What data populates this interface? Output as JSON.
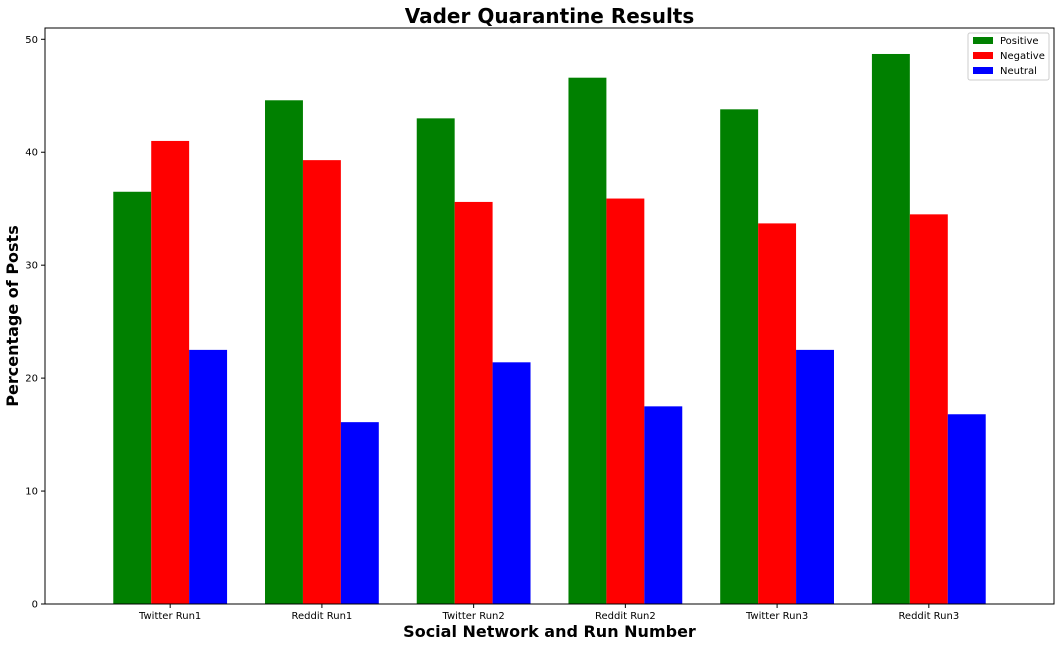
{
  "chart_data": {
    "type": "bar",
    "title": "Vader Quarantine Results",
    "xlabel": "Social Network and Run Number",
    "ylabel": "Percentage of Posts",
    "categories": [
      "Twitter Run1",
      "Reddit Run1",
      "Twitter Run2",
      "Reddit Run2",
      "Twitter Run3",
      "Reddit Run3"
    ],
    "ylim": [
      0,
      51
    ],
    "yticks": [
      0,
      10,
      20,
      30,
      40,
      50
    ],
    "grid": false,
    "legend_position": "top-right",
    "series": [
      {
        "name": "Positive",
        "color": "#008000",
        "values": [
          36.5,
          44.6,
          43.0,
          46.6,
          43.8,
          48.7
        ]
      },
      {
        "name": "Negative",
        "color": "#ff0000",
        "values": [
          41.0,
          39.3,
          35.6,
          35.9,
          33.7,
          34.5
        ]
      },
      {
        "name": "Neutral",
        "color": "#0000ff",
        "values": [
          22.5,
          16.1,
          21.4,
          17.5,
          22.5,
          16.8
        ]
      }
    ]
  }
}
